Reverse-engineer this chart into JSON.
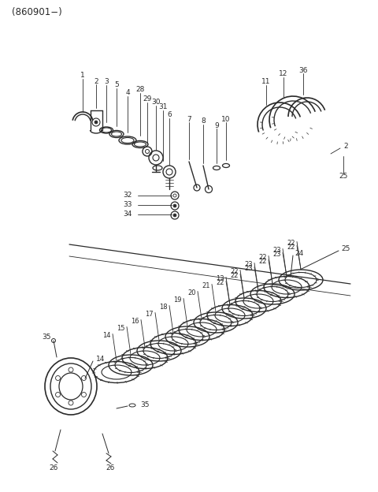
{
  "title": "(860901−)",
  "bg": "#ffffff",
  "lc": "#2a2a2a",
  "tc": "#2a2a2a",
  "fw": 4.8,
  "fh": 6.24,
  "dpi": 100
}
